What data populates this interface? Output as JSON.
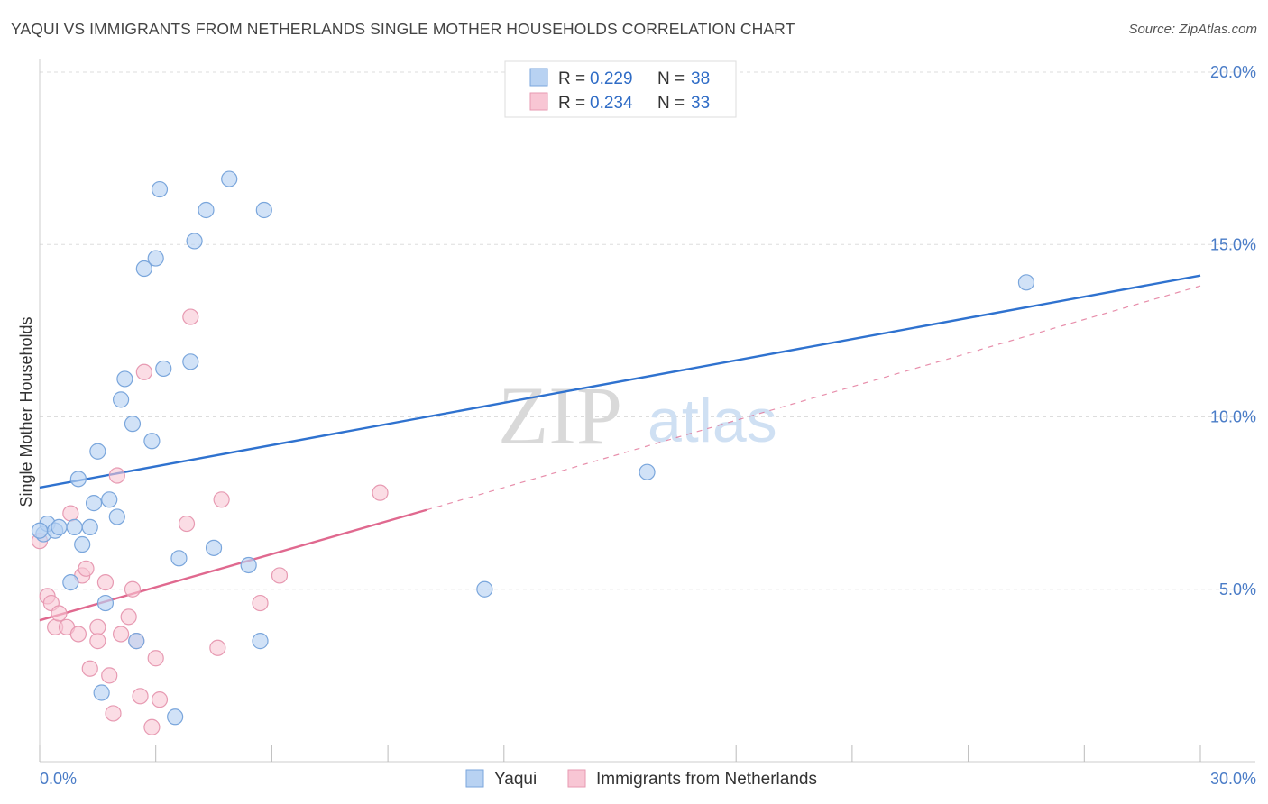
{
  "header": {
    "title": "YAQUI VS IMMIGRANTS FROM NETHERLANDS SINGLE MOTHER HOUSEHOLDS CORRELATION CHART",
    "source": "Source: ZipAtlas.com"
  },
  "watermark": {
    "zip": "ZIP",
    "atlas": "atlas"
  },
  "colors": {
    "yaqui_fill": "#b8d2f2",
    "yaqui_stroke": "#7aa6dc",
    "yaqui_line": "#2f72cf",
    "neth_fill": "#f8c6d4",
    "neth_stroke": "#e79ab2",
    "neth_line": "#e0698f",
    "grid": "#dddddd",
    "tick_text": "#4a7cc7"
  },
  "legend_top": [
    {
      "r_label": "R = ",
      "r_value": "0.229",
      "n_label": "N = ",
      "n_value": "38"
    },
    {
      "r_label": "R = ",
      "r_value": "0.234",
      "n_label": "N = ",
      "n_value": "33"
    }
  ],
  "chart_data": {
    "type": "scatter",
    "title": "YAQUI VS IMMIGRANTS FROM NETHERLANDS SINGLE MOTHER HOUSEHOLDS CORRELATION CHART",
    "xlabel": "",
    "ylabel": "Single Mother Households",
    "xlim": [
      0,
      30
    ],
    "ylim": [
      0,
      20
    ],
    "x_tick_labels": [
      {
        "value": 0,
        "label": "0.0%"
      },
      {
        "value": 30,
        "label": "30.0%"
      }
    ],
    "y_tick_labels": [
      {
        "value": 5,
        "label": "5.0%"
      },
      {
        "value": 10,
        "label": "10.0%"
      },
      {
        "value": 15,
        "label": "15.0%"
      },
      {
        "value": 20,
        "label": "20.0%"
      }
    ],
    "grid": true,
    "legend_position": "bottom",
    "series": [
      {
        "name": "Yaqui",
        "r": 0.229,
        "n": 38,
        "trend": {
          "x": [
            0,
            30
          ],
          "y": [
            7.95,
            14.1
          ],
          "style": "solid"
        },
        "points": [
          [
            0.1,
            6.6
          ],
          [
            0.2,
            6.9
          ],
          [
            0.4,
            6.7
          ],
          [
            0.5,
            6.8
          ],
          [
            0.8,
            5.2
          ],
          [
            0.9,
            6.8
          ],
          [
            1.0,
            8.2
          ],
          [
            1.1,
            6.3
          ],
          [
            1.3,
            6.8
          ],
          [
            1.4,
            7.5
          ],
          [
            1.5,
            9.0
          ],
          [
            1.6,
            2.0
          ],
          [
            1.7,
            4.6
          ],
          [
            1.8,
            7.6
          ],
          [
            2.0,
            7.1
          ],
          [
            2.1,
            10.5
          ],
          [
            2.2,
            11.1
          ],
          [
            2.4,
            9.8
          ],
          [
            2.5,
            3.5
          ],
          [
            2.7,
            14.3
          ],
          [
            2.9,
            9.3
          ],
          [
            3.0,
            14.6
          ],
          [
            3.1,
            16.6
          ],
          [
            3.2,
            11.4
          ],
          [
            3.5,
            1.3
          ],
          [
            3.6,
            5.9
          ],
          [
            3.9,
            11.6
          ],
          [
            4.0,
            15.1
          ],
          [
            4.3,
            16.0
          ],
          [
            4.5,
            6.2
          ],
          [
            4.9,
            16.9
          ],
          [
            5.4,
            5.7
          ],
          [
            5.7,
            3.5
          ],
          [
            5.8,
            16.0
          ],
          [
            11.5,
            5.0
          ],
          [
            15.7,
            8.4
          ],
          [
            25.5,
            13.9
          ],
          [
            0.0,
            6.7
          ]
        ]
      },
      {
        "name": "Immigrants from Netherlands",
        "r": 0.234,
        "n": 33,
        "trend": {
          "x": [
            0,
            10
          ],
          "y": [
            4.1,
            7.3
          ],
          "style": "solid",
          "extended": {
            "x": [
              10,
              30
            ],
            "y": [
              7.3,
              13.8
            ],
            "style": "dashed"
          }
        },
        "points": [
          [
            0.0,
            6.4
          ],
          [
            0.2,
            4.8
          ],
          [
            0.3,
            4.6
          ],
          [
            0.4,
            3.9
          ],
          [
            0.5,
            4.3
          ],
          [
            0.7,
            3.9
          ],
          [
            0.8,
            7.2
          ],
          [
            1.0,
            3.7
          ],
          [
            1.1,
            5.4
          ],
          [
            1.2,
            5.6
          ],
          [
            1.3,
            2.7
          ],
          [
            1.5,
            3.5
          ],
          [
            1.5,
            3.9
          ],
          [
            1.7,
            5.2
          ],
          [
            1.8,
            2.5
          ],
          [
            1.9,
            1.4
          ],
          [
            2.0,
            8.3
          ],
          [
            2.1,
            3.7
          ],
          [
            2.3,
            4.2
          ],
          [
            2.4,
            5.0
          ],
          [
            2.5,
            3.5
          ],
          [
            2.6,
            1.9
          ],
          [
            2.7,
            11.3
          ],
          [
            2.9,
            1.0
          ],
          [
            3.0,
            3.0
          ],
          [
            3.1,
            1.8
          ],
          [
            3.8,
            6.9
          ],
          [
            3.9,
            12.9
          ],
          [
            4.6,
            3.3
          ],
          [
            4.7,
            7.6
          ],
          [
            5.7,
            4.6
          ],
          [
            6.2,
            5.4
          ],
          [
            8.8,
            7.8
          ]
        ]
      }
    ]
  }
}
